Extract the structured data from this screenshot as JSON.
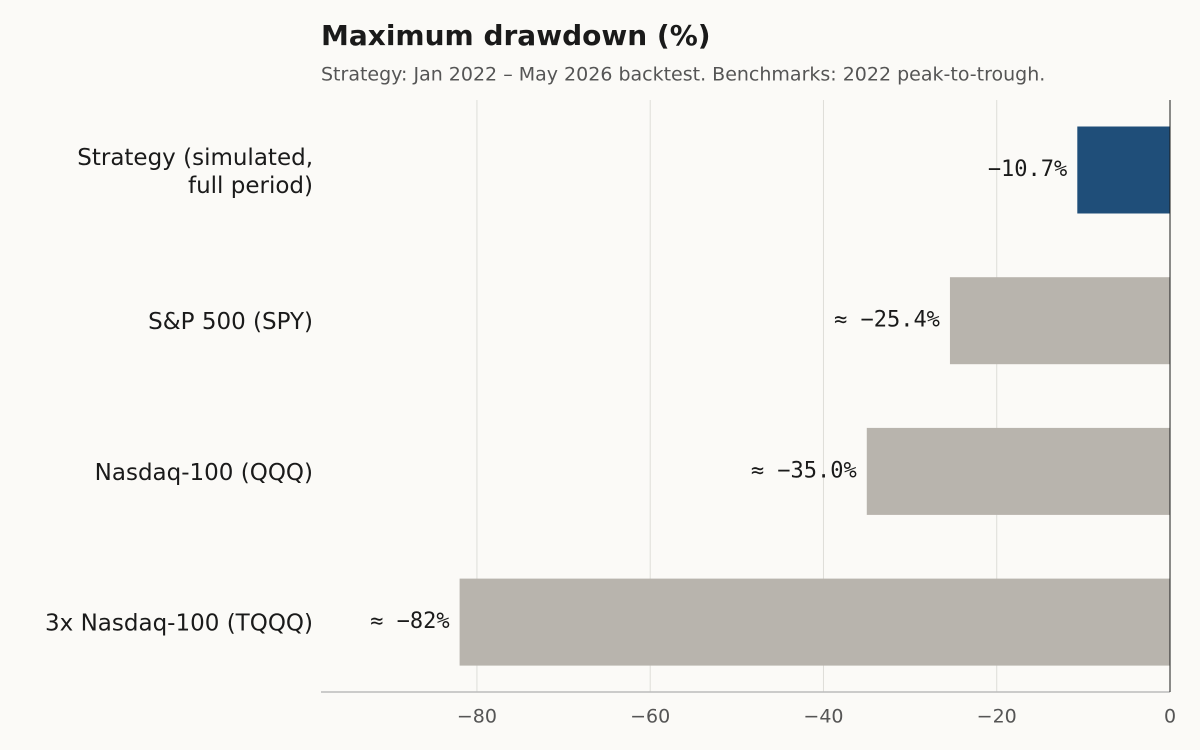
{
  "chart_data": {
    "type": "barh",
    "title": "Maximum drawdown (%)",
    "subtitle": "Strategy: Jan 2022 – May 2026 backtest. Benchmarks: 2022 peak-to-trough.",
    "categories": [
      "Strategy (simulated,\nfull period)",
      "S&P 500 (SPY)",
      "Nasdaq-100 (QQQ)",
      "3x Nasdaq-100 (TQQQ)"
    ],
    "values": [
      -10.7,
      -25.4,
      -35.0,
      -82
    ],
    "value_labels": [
      "−10.7%",
      "≈ −25.4%",
      "≈ −35.0%",
      "≈ −82%"
    ],
    "colors": [
      "#1f4e79",
      "#b8b4ad",
      "#b8b4ad",
      "#b8b4ad"
    ],
    "xlim": [
      -98,
      0
    ],
    "xticks": [
      {
        "value": -80,
        "label": "−80"
      },
      {
        "value": -60,
        "label": "−60"
      },
      {
        "value": -40,
        "label": "−40"
      },
      {
        "value": -20,
        "label": "−20"
      },
      0
    ],
    "grid": true
  }
}
